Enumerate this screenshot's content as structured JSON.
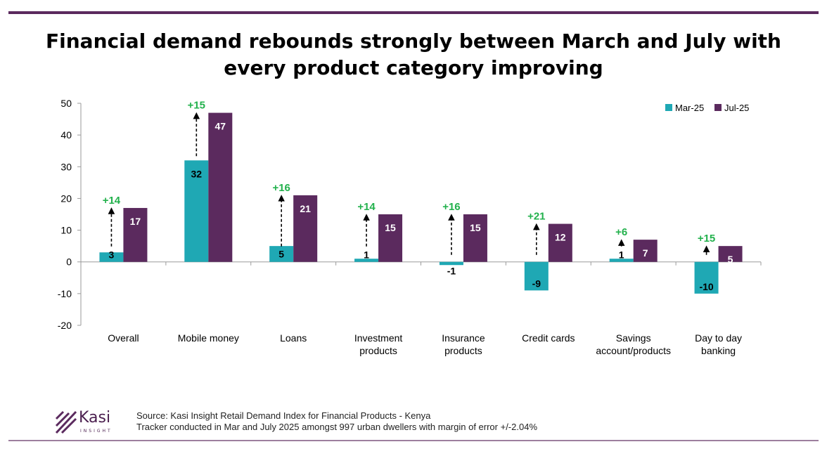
{
  "title": "Financial demand rebounds strongly between March and July with every product category improving",
  "colors": {
    "mar": "#1fa8b4",
    "jul": "#5b2a5e",
    "change": "#22b14c",
    "accent": "#5b2a5e"
  },
  "chart_data": {
    "type": "bar",
    "categories": [
      "Overall",
      "Mobile money",
      "Loans",
      "Investment products",
      "Insurance products",
      "Credit cards",
      "Savings account/products",
      "Day to day banking"
    ],
    "category_lines": [
      [
        "Overall"
      ],
      [
        "Mobile money"
      ],
      [
        "Loans"
      ],
      [
        "Investment",
        "products"
      ],
      [
        "Insurance",
        "products"
      ],
      [
        "Credit cards"
      ],
      [
        "Savings",
        "account/products"
      ],
      [
        "Day to day",
        "banking"
      ]
    ],
    "series": [
      {
        "name": "Mar-25",
        "values": [
          3,
          32,
          5,
          1,
          -1,
          -9,
          1,
          -10
        ]
      },
      {
        "name": "Jul-25",
        "values": [
          17,
          47,
          21,
          15,
          15,
          12,
          7,
          5
        ]
      }
    ],
    "change_labels": [
      "+14",
      "+15",
      "+16",
      "+14",
      "+16",
      "+21",
      "+6",
      "+15"
    ],
    "ylim": [
      -20,
      50
    ],
    "yticks": [
      -20,
      -10,
      0,
      10,
      20,
      30,
      40,
      50
    ],
    "grid": false,
    "legend": "top-right",
    "xlabel": "",
    "ylabel": ""
  },
  "logo": {
    "name": "Kasi",
    "sub": "INSIGHT"
  },
  "source": {
    "line1": "Source: Kasi Insight Retail Demand Index for Financial Products - Kenya",
    "line2": "Tracker conducted in Mar and July 2025 amongst  997 urban dwellers with margin of error +/-2.04%"
  }
}
